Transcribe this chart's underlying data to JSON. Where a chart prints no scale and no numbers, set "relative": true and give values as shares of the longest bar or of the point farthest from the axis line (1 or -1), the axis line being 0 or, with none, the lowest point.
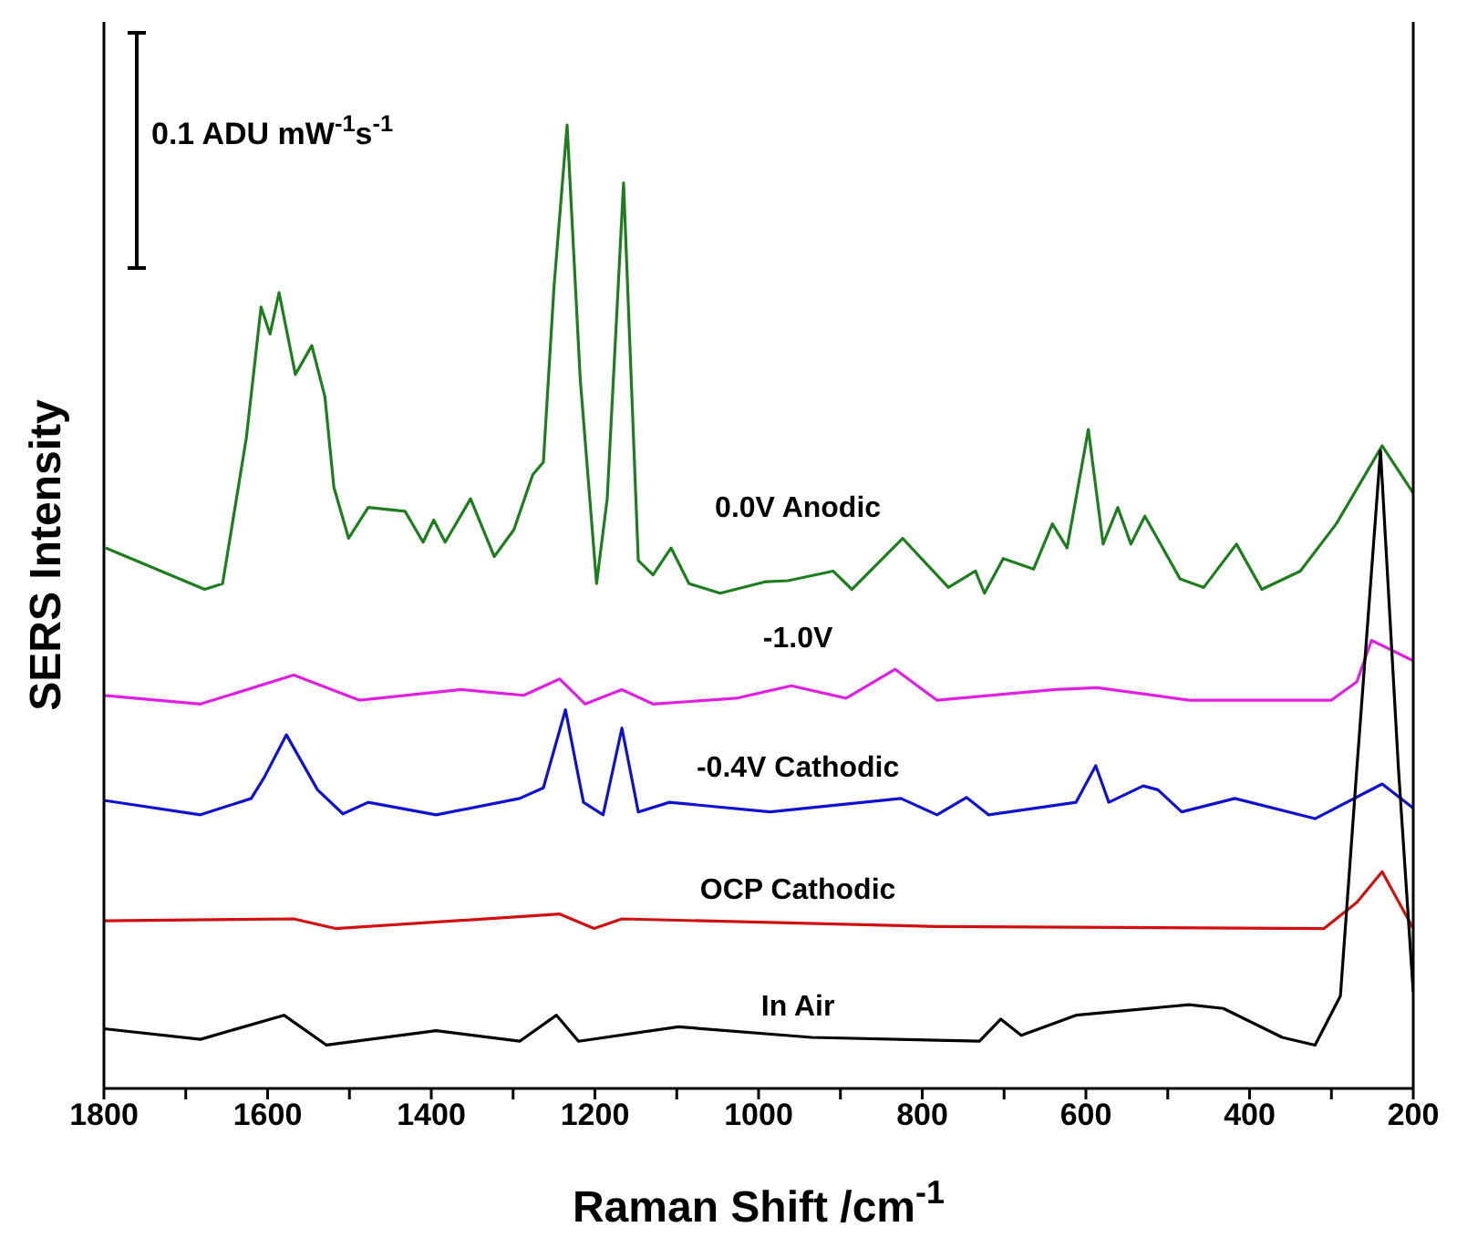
{
  "chart_data": {
    "type": "line",
    "relative": true,
    "xlabel": "Raman Shift /cm$^{-1}$",
    "ylabel": "SERS Intensity",
    "annotations": [
      "0.1 ADU mW$^{-1}$s$^{-1}$"
    ],
    "xlim": [
      1800,
      200
    ],
    "xticks": [
      1800,
      {
        "value": 1700,
        "label": null
      },
      1600,
      {
        "value": 1500,
        "label": null
      },
      1400,
      {
        "value": 1300,
        "label": null
      },
      1200,
      {
        "value": 1100,
        "label": null
      },
      1000,
      {
        "value": 900,
        "label": null
      },
      800,
      {
        "value": 700,
        "label": null
      },
      600,
      {
        "value": 500,
        "label": null
      },
      400,
      {
        "value": 300,
        "label": null
      },
      200
    ],
    "series": [
      {
        "name": "0.0V Anodic",
        "color": "#1e7d1e",
        "x": [
          1798,
          1677,
          1655,
          1626,
          1608,
          1597,
          1586,
          1566,
          1546,
          1530,
          1519,
          1501,
          1477,
          1432,
          1410,
          1397,
          1383,
          1352,
          1323,
          1299,
          1276,
          1263,
          1250,
          1234,
          1218,
          1198,
          1185,
          1165,
          1147,
          1129,
          1107,
          1085,
          1047,
          991,
          964,
          909,
          886,
          824,
          768,
          735,
          724,
          701,
          664,
          641,
          623,
          597,
          579,
          561,
          545,
          528,
          485,
          456,
          416,
          385,
          338,
          294,
          238,
          200
        ],
        "values": [
          0.561,
          0.518,
          0.524,
          0.675,
          0.811,
          0.783,
          0.826,
          0.741,
          0.771,
          0.718,
          0.624,
          0.571,
          0.603,
          0.599,
          0.567,
          0.59,
          0.567,
          0.612,
          0.552,
          0.58,
          0.637,
          0.65,
          0.832,
          1,
          0.737,
          0.524,
          0.612,
          0.94,
          0.548,
          0.533,
          0.561,
          0.524,
          0.514,
          0.526,
          0.527,
          0.537,
          0.518,
          0.571,
          0.52,
          0.537,
          0.514,
          0.55,
          0.539,
          0.586,
          0.561,
          0.684,
          0.565,
          0.603,
          0.565,
          0.594,
          0.529,
          0.52,
          0.565,
          0.518,
          0.537,
          0.586,
          0.667,
          0.618
        ]
      },
      {
        "name": "-1.0V",
        "color": "#e020e0",
        "x": [
          1800,
          1682,
          1568,
          1488,
          1363,
          1287,
          1243,
          1212,
          1167,
          1129,
          1027,
          960,
          893,
          833,
          782,
          637,
          586,
          474,
          300,
          269,
          251,
          200
        ],
        "values": [
          0.408,
          0.399,
          0.429,
          0.403,
          0.414,
          0.408,
          0.425,
          0.399,
          0.414,
          0.399,
          0.405,
          0.418,
          0.405,
          0.435,
          0.403,
          0.414,
          0.416,
          0.403,
          0.403,
          0.422,
          0.465,
          0.444
        ]
      },
      {
        "name": "-0.4V Cathodic",
        "color": "#1010d0",
        "x": [
          1800,
          1682,
          1620,
          1604,
          1577,
          1539,
          1508,
          1477,
          1394,
          1292,
          1263,
          1236,
          1214,
          1190,
          1167,
          1147,
          1109,
          986,
          826,
          782,
          746,
          719,
          612,
          588,
          572,
          530,
          512,
          483,
          418,
          320,
          238,
          200
        ],
        "values": [
          0.299,
          0.284,
          0.301,
          0.323,
          0.367,
          0.31,
          0.285,
          0.297,
          0.284,
          0.301,
          0.312,
          0.393,
          0.297,
          0.284,
          0.374,
          0.287,
          0.297,
          0.287,
          0.301,
          0.284,
          0.302,
          0.284,
          0.297,
          0.335,
          0.297,
          0.314,
          0.31,
          0.287,
          0.301,
          0.28,
          0.316,
          0.291
        ]
      },
      {
        "name": "OCP Cathodic",
        "color": "#d01010",
        "x": [
          1800,
          1568,
          1517,
          1243,
          1201,
          1167,
          782,
          309,
          269,
          238,
          200
        ],
        "values": [
          0.174,
          0.176,
          0.166,
          0.181,
          0.166,
          0.176,
          0.168,
          0.166,
          0.193,
          0.225,
          0.166
        ]
      },
      {
        "name": "In Air",
        "color": "#000000",
        "x": [
          1800,
          1682,
          1580,
          1528,
          1394,
          1292,
          1247,
          1220,
          1098,
          935,
          730,
          704,
          679,
          612,
          474,
          432,
          360,
          320,
          289,
          269,
          240,
          218,
          200
        ],
        "values": [
          0.062,
          0.051,
          0.076,
          0.045,
          0.06,
          0.049,
          0.076,
          0.049,
          0.064,
          0.053,
          0.049,
          0.072,
          0.055,
          0.076,
          0.087,
          0.083,
          0.053,
          0.045,
          0.096,
          0.331,
          0.662,
          0.331,
          0.1
        ]
      }
    ]
  }
}
